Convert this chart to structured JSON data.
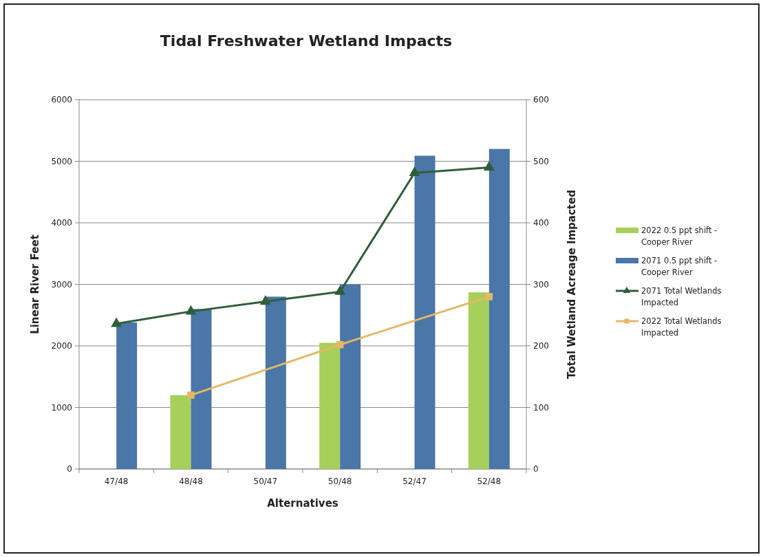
{
  "chart_data": {
    "type": "bar",
    "title": "Tidal Freshwater Wetland Impacts",
    "xlabel": "Alternatives",
    "ylabel": "Linear River Feet",
    "y2label": "Total Wetland Acreage Impacted",
    "categories": [
      "47/48",
      "48/48",
      "50/47",
      "50/48",
      "52/47",
      "52/48"
    ],
    "series": [
      {
        "name": "2022 0.5 ppt shift - Cooper River",
        "color": "#a6d05a",
        "values": [
          null,
          1200,
          null,
          2050,
          null,
          2870
        ]
      },
      {
        "name": "2071 0.5 ppt shift - Cooper River",
        "color": "#4a76a8",
        "values": [
          2380,
          2600,
          2800,
          3000,
          5090,
          5200
        ]
      },
      {
        "name": "2071 Total Wetlands Impacted",
        "type": "line",
        "axis": "y2",
        "marker": "triangle",
        "color": "#2f5e3a",
        "values": [
          236,
          256,
          272,
          288,
          481,
          490
        ]
      },
      {
        "name": "2022 Total Wetlands Impacted",
        "type": "line",
        "axis": "y2",
        "marker": "square",
        "color": "#e6b765",
        "values": [
          null,
          120,
          null,
          202,
          null,
          280
        ]
      }
    ],
    "ylim": [
      0,
      6000
    ],
    "yticks": [
      0,
      1000,
      2000,
      3000,
      4000,
      5000,
      6000
    ],
    "y2lim": [
      0,
      600
    ],
    "y2ticks": [
      0,
      100,
      200,
      300,
      400,
      500,
      600
    ],
    "grid": "y",
    "legend": "right"
  }
}
